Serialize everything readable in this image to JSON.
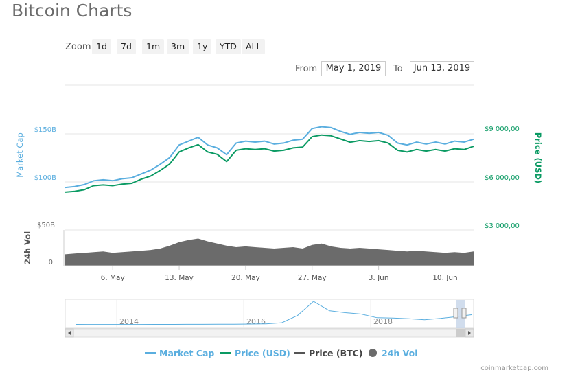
{
  "page": {
    "title": "Bitcoin Charts",
    "credit": "coinmarketcap.com"
  },
  "zoom": {
    "label": "Zoom",
    "buttons": [
      "1d",
      "7d",
      "1m",
      "3m",
      "1y",
      "YTD",
      "ALL"
    ]
  },
  "range": {
    "from_label": "From",
    "from_value": "May 1, 2019",
    "to_label": "To",
    "to_value": "Jun 13, 2019"
  },
  "colors": {
    "market_cap": "#5aaedf",
    "price_usd": "#0a9a63",
    "price_btc": "#555555",
    "volume": "#6b6b6b",
    "navigator": "#5aaedf"
  },
  "chart_data": {
    "type": "line",
    "x_ticks": [
      "6. May",
      "13. May",
      "20. May",
      "27. May",
      "3. Jun",
      "10. Jun"
    ],
    "x_range": [
      "May 1, 2019",
      "Jun 13, 2019"
    ],
    "x_days": [
      0,
      1,
      2,
      3,
      4,
      5,
      6,
      7,
      8,
      9,
      10,
      11,
      12,
      13,
      14,
      15,
      16,
      17,
      18,
      19,
      20,
      21,
      22,
      23,
      24,
      25,
      26,
      27,
      28,
      29,
      30,
      31,
      32,
      33,
      34,
      35,
      36,
      37,
      38,
      39,
      40,
      41,
      42,
      43
    ],
    "left_axis": {
      "title": "Market Cap",
      "ticks": [
        "$100B",
        "$150B"
      ],
      "range_billion": [
        50,
        200
      ]
    },
    "right_axis": {
      "title": "Price (USD)",
      "ticks": [
        "$3 000,00",
        "$6 000,00",
        "$9 000,00"
      ],
      "range_usd": [
        3000,
        12000
      ]
    },
    "volume_axis": {
      "title": "24h Vol",
      "ticks": [
        "0",
        "$50B"
      ],
      "range_billion": [
        0,
        50
      ]
    },
    "series": [
      {
        "name": "Market Cap",
        "axis": "left",
        "values": [
          94,
          95,
          97,
          101,
          102,
          101,
          103,
          104,
          108,
          112,
          118,
          125,
          138,
          142,
          146,
          138,
          135,
          128,
          140,
          142,
          141,
          142,
          139,
          140,
          143,
          144,
          155,
          157,
          156,
          152,
          149,
          151,
          150,
          151,
          148,
          140,
          138,
          141,
          139,
          141,
          139,
          142,
          141,
          144
        ]
      },
      {
        "name": "Price (USD)",
        "axis": "right",
        "values": [
          5350,
          5400,
          5500,
          5750,
          5800,
          5750,
          5850,
          5900,
          6150,
          6350,
          6700,
          7100,
          7850,
          8100,
          8300,
          7850,
          7700,
          7250,
          7950,
          8050,
          8000,
          8050,
          7900,
          7950,
          8100,
          8150,
          8800,
          8900,
          8850,
          8650,
          8450,
          8550,
          8500,
          8550,
          8400,
          7950,
          7850,
          8000,
          7900,
          8000,
          7900,
          8050,
          8000,
          8200
        ]
      },
      {
        "name": "Price (BTC)",
        "axis": "none",
        "values": []
      },
      {
        "name": "24h Vol",
        "axis": "volume",
        "values": [
          16,
          17,
          18,
          19,
          20,
          18,
          19,
          20,
          21,
          22,
          24,
          28,
          33,
          36,
          38,
          34,
          31,
          28,
          26,
          27,
          26,
          25,
          24,
          25,
          26,
          24,
          29,
          31,
          27,
          25,
          24,
          25,
          24,
          23,
          22,
          21,
          20,
          21,
          20,
          19,
          18,
          19,
          18,
          20
        ]
      }
    ],
    "navigator": {
      "ticks": [
        "2014",
        "2016",
        "2018"
      ],
      "series_name": "Market Cap",
      "values": [
        10,
        9,
        9,
        8,
        9,
        10,
        11,
        12,
        13,
        15,
        17,
        20,
        27,
        60,
        280,
        700,
        420,
        360,
        320,
        210,
        200,
        180,
        150,
        190,
        240,
        300
      ]
    },
    "legend": {
      "placement": "bottom-center",
      "items": [
        "Market Cap",
        "Price (USD)",
        "Price (BTC)",
        "24h Vol"
      ]
    },
    "grid": true
  }
}
